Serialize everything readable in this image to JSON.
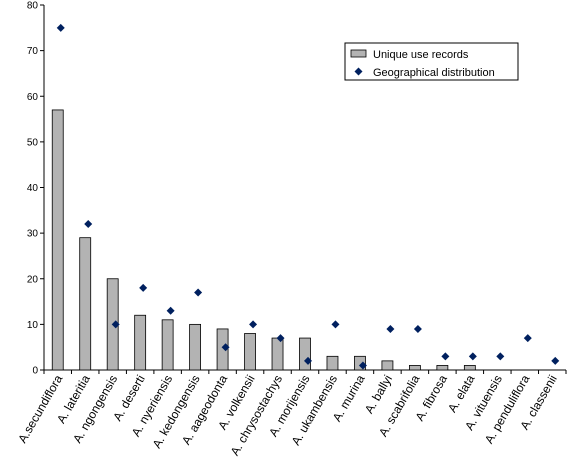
{
  "chart_data": {
    "type": "bar",
    "categories": [
      "A.secundiflora",
      "A. lateritia",
      "A. ngongensis",
      "A. deserti",
      "A. nyeriensis",
      "A. kedongensis",
      "A. aageodonta",
      "A. volkensii",
      "A. chrysostachys",
      "A. morijensis",
      "A. ukambensis",
      "A. murina",
      "A. ballyi",
      "A. scabrifolia",
      "A. fibrosa",
      "A. elata",
      "A. vituensis",
      "A. penduliflora",
      "A. classenii"
    ],
    "series": [
      {
        "name": "Unique use records",
        "type": "bar",
        "color": "#b3b3b3",
        "values": [
          57,
          29,
          20,
          12,
          11,
          10,
          9,
          8,
          7,
          7,
          3,
          3,
          2,
          1,
          1,
          1,
          0,
          0,
          0
        ]
      },
      {
        "name": "Geographical distribution",
        "type": "scatter",
        "marker": "diamond",
        "color": "#00205f",
        "values": [
          75,
          32,
          10,
          18,
          13,
          17,
          5,
          10,
          7,
          2,
          10,
          1,
          9,
          9,
          3,
          3,
          3,
          7,
          2
        ]
      }
    ],
    "yticks": [
      0,
      10,
      20,
      30,
      40,
      50,
      60,
      70,
      80
    ],
    "ylim": [
      0,
      80
    ],
    "legend_position": "top-right",
    "grid": false
  }
}
